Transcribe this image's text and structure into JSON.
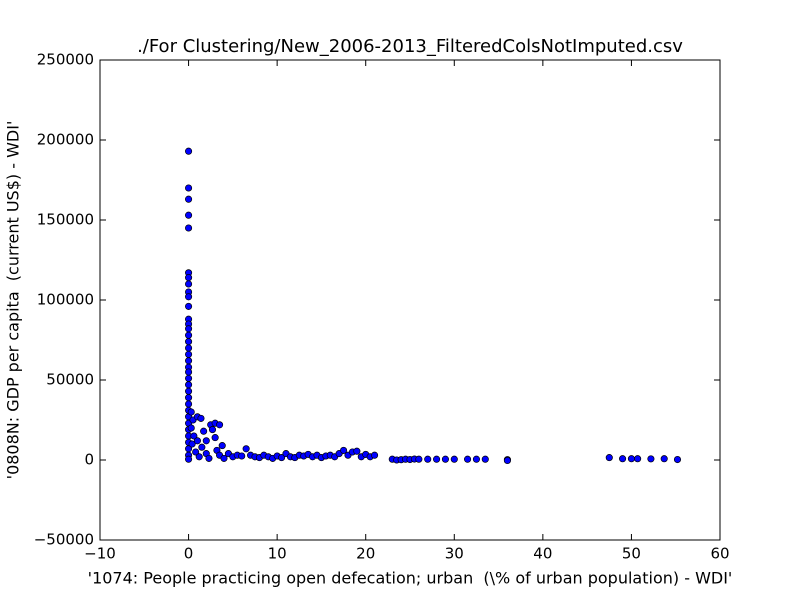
{
  "chart_data": {
    "type": "scatter",
    "title": "./For Clustering/New_2006-2013_FilteredColsNotImputed.csv",
    "x_label": "'1074: People practicing open defecation; urban  (\\% of urban population) - WDI'",
    "y_label": "'0808N: GDP per capita  (current US$) - WDI'",
    "color": "#0000ff",
    "xlim": [
      -10,
      60
    ],
    "ylim": [
      -50000,
      250000
    ],
    "xticks": [
      {
        "value": -10,
        "label": "−10"
      },
      0,
      10,
      20,
      30,
      40,
      50,
      60
    ],
    "yticks": [
      {
        "value": -50000,
        "label": "−50000"
      },
      0,
      50000,
      100000,
      150000,
      200000,
      250000
    ],
    "x": [
      0,
      0,
      0,
      0,
      0,
      0,
      0,
      0,
      0,
      0,
      0,
      0,
      0,
      0,
      0,
      0,
      0,
      0,
      0,
      0,
      0,
      0,
      0,
      0,
      0,
      0,
      0,
      0,
      0,
      0,
      0,
      0,
      0,
      0,
      0,
      0.3,
      0.3,
      0.4,
      0.5,
      0.6,
      0.8,
      1,
      1,
      1.2,
      1.4,
      1.5,
      1.7,
      2,
      2,
      2.3,
      2.5,
      2.7,
      3,
      3,
      3.2,
      3.5,
      3.5,
      3.8,
      4,
      4.5,
      5,
      5.5,
      6,
      6.5,
      7,
      7.5,
      8,
      8.5,
      9,
      9.5,
      10,
      10.5,
      11,
      11.5,
      12,
      12.5,
      13,
      13.5,
      14,
      14.5,
      15,
      15.5,
      16,
      16.5,
      17,
      17.5,
      18,
      18.5,
      19,
      19.5,
      20,
      20.5,
      21,
      23,
      23.5,
      24,
      24.5,
      25,
      25.5,
      26,
      27,
      28,
      29,
      30,
      31.5,
      32.5,
      33.5,
      36,
      36,
      47.5,
      49,
      50,
      50.7,
      52.2,
      53.7,
      55.2
    ],
    "values": [
      193000,
      170000,
      163000,
      153000,
      145000,
      117000,
      114000,
      110000,
      105000,
      102000,
      96000,
      88000,
      85000,
      82000,
      78000,
      74000,
      70000,
      66000,
      62000,
      58000,
      55000,
      51000,
      47000,
      43000,
      39000,
      35000,
      31000,
      27000,
      23000,
      19000,
      15000,
      11000,
      7000,
      3000,
      500,
      30000,
      20000,
      10000,
      25000,
      15000,
      5000,
      27000,
      12000,
      2000,
      26000,
      8000,
      18000,
      4000,
      12000,
      1000,
      22000,
      19000,
      23000,
      14000,
      6000,
      22000,
      3000,
      9000,
      1000,
      4000,
      2000,
      3000,
      2500,
      7000,
      3000,
      2000,
      1500,
      3000,
      2000,
      1000,
      2500,
      1500,
      4000,
      2000,
      1500,
      3000,
      2500,
      3500,
      2000,
      3000,
      1500,
      2500,
      3000,
      2000,
      4000,
      6000,
      3000,
      5000,
      5500,
      2000,
      3500,
      2000,
      3000,
      500,
      0,
      200,
      500,
      300,
      600,
      500,
      500,
      500,
      500,
      500,
      500,
      500,
      500,
      200,
      -300,
      1500,
      800,
      800,
      800,
      700,
      800,
      300
    ]
  }
}
